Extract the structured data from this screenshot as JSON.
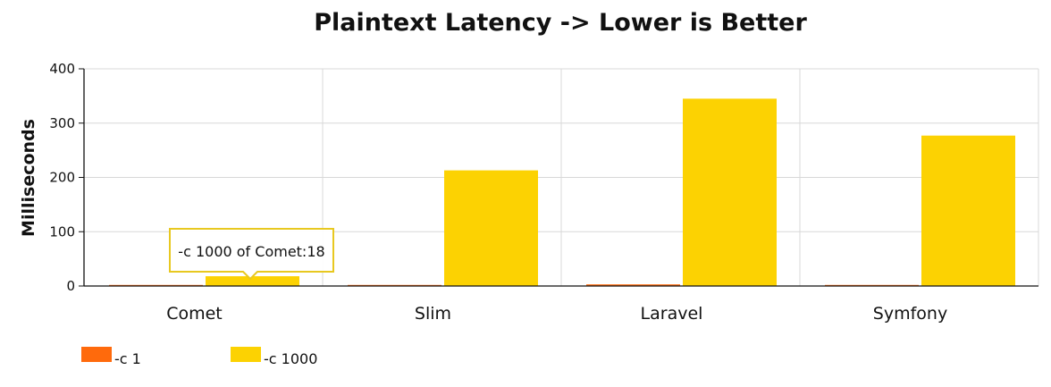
{
  "chart_data": {
    "type": "bar",
    "title": "Plaintext Latency -> Lower is Better",
    "ylabel": "Milliseconds",
    "xlabel": "",
    "categories": [
      "Comet",
      "Slim",
      "Laravel",
      "Symfony"
    ],
    "series": [
      {
        "name": "-c 1",
        "color": "#ff6a0c",
        "values": [
          1,
          1,
          3,
          1
        ]
      },
      {
        "name": "-c 1000",
        "color": "#fcd202",
        "values": [
          18,
          213,
          345,
          277
        ]
      }
    ],
    "ylim": [
      0,
      400
    ],
    "yticks": [
      0,
      100,
      200,
      300,
      400
    ],
    "grid": true,
    "legend": "bottom-left",
    "tooltip": {
      "text": "-c 1000 of Comet:18"
    }
  }
}
